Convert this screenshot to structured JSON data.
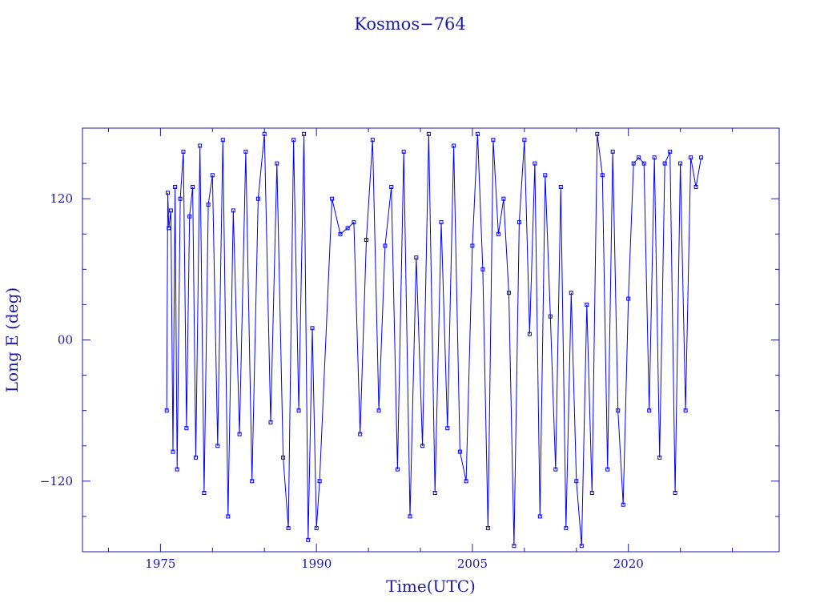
{
  "chart_data": {
    "type": "line",
    "title": "Kosmos−764",
    "xlabel": "Time(UTC)",
    "ylabel": "Long E (deg)",
    "xlim": [
      1967.5,
      2034.5
    ],
    "ylim": [
      -180,
      180
    ],
    "x_ticks": [
      1975,
      1990,
      2005,
      2020
    ],
    "x_tick_labels": [
      "1975",
      "1990",
      "2005",
      "2020"
    ],
    "y_ticks": [
      120,
      0,
      -120
    ],
    "y_tick_labels": [
      "120",
      "00",
      "−120"
    ],
    "grid": false,
    "legend": "none",
    "colors": {
      "series": "#0000ff",
      "axes": "#1a1aa6",
      "background": "#ffffff"
    },
    "series": [
      {
        "x": [
          1975.6,
          1975.7,
          1975.8,
          1976.0,
          1976.2,
          1976.4,
          1976.6,
          1976.9,
          1977.2,
          1977.5,
          1977.8,
          1978.1,
          1978.4,
          1978.8,
          1979.2,
          1979.6,
          1980.0,
          1980.5,
          1981.0,
          1981.5,
          1982.0,
          1982.6,
          1983.2,
          1983.8,
          1984.4,
          1985.0,
          1985.6,
          1986.2,
          1986.8,
          1987.3,
          1987.8,
          1988.3,
          1988.8,
          1989.2,
          1989.6,
          1990.0,
          1990.3,
          1991.5,
          1992.3,
          1993.0,
          1993.6,
          1994.2,
          1994.8,
          1995.4,
          1996.0,
          1996.6,
          1997.2,
          1997.8,
          1998.4,
          1999.0,
          1999.6,
          2000.2,
          2000.8,
          2001.4,
          2002.0,
          2002.6,
          2003.2,
          2003.8,
          2004.4,
          2005.0,
          2005.5,
          2006.0,
          2006.5,
          2007.0,
          2007.5,
          2008.0,
          2008.5,
          2009.0,
          2009.5,
          2010.0,
          2010.5,
          2011.0,
          2011.5,
          2012.0,
          2012.5,
          2013.0,
          2013.5,
          2014.0,
          2014.5,
          2015.0,
          2015.5,
          2016.0,
          2016.5,
          2017.0,
          2017.5,
          2018.0,
          2018.5,
          2019.0,
          2019.5,
          2020.0,
          2020.5,
          2021.0,
          2021.5,
          2022.0,
          2022.5,
          2023.0,
          2023.5,
          2024.0,
          2024.5,
          2025.0,
          2025.5,
          2026.0,
          2026.5,
          2027.0
        ],
        "y": [
          -60,
          125,
          95,
          110,
          -95,
          130,
          -110,
          120,
          160,
          -75,
          105,
          130,
          -100,
          165,
          -130,
          115,
          140,
          -90,
          170,
          -150,
          110,
          -80,
          160,
          -120,
          120,
          175,
          -70,
          150,
          -100,
          -160,
          170,
          -60,
          175,
          -170,
          10,
          -160,
          -120,
          120,
          90,
          95,
          100,
          -80,
          85,
          170,
          -60,
          80,
          130,
          -110,
          160,
          -150,
          70,
          -90,
          175,
          -130,
          100,
          -75,
          165,
          -95,
          -120,
          80,
          175,
          60,
          -160,
          170,
          90,
          120,
          40,
          -175,
          100,
          170,
          5,
          150,
          -150,
          140,
          20,
          -110,
          130,
          -160,
          40,
          -120,
          -175,
          30,
          -130,
          175,
          140,
          -110,
          160,
          -60,
          -140,
          35,
          150,
          155,
          150,
          -60,
          155,
          -100,
          150,
          160,
          -130,
          150,
          -60,
          155,
          130,
          155
        ]
      }
    ]
  }
}
